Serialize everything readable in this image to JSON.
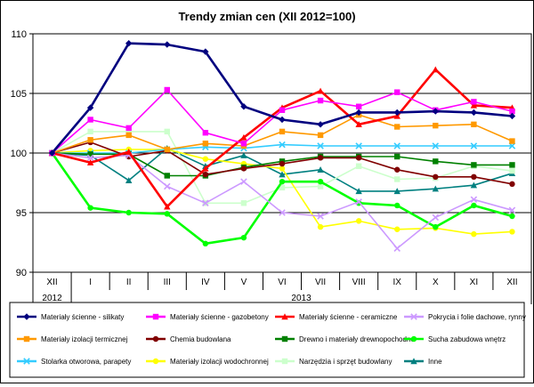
{
  "chart_data": {
    "type": "line",
    "title": "Trendy zmian cen (XII 2012=100)",
    "xlabel": "",
    "ylabel": "",
    "categories": [
      "XII",
      "I",
      "II",
      "III",
      "IV",
      "V",
      "VI",
      "VII",
      "VIII",
      "IX",
      "X",
      "XI",
      "XII"
    ],
    "year_labels": [
      {
        "label": "2012",
        "from": 0,
        "to": 0
      },
      {
        "label": "2013",
        "from": 1,
        "to": 12
      }
    ],
    "ylim": [
      90,
      110
    ],
    "yticks": [
      90,
      95,
      100,
      105,
      110
    ],
    "grid": "horizontal at 95, 100, 105",
    "legend_position": "bottom",
    "series": [
      {
        "name": "Materiały ścienne - silikaty",
        "color": "#00007F",
        "marker": "diamond",
        "values": [
          100,
          103.8,
          109.2,
          109.1,
          108.5,
          103.9,
          102.8,
          102.4,
          103.4,
          103.4,
          103.5,
          103.4,
          103.1
        ]
      },
      {
        "name": "Materiały ścienne - gazobetony",
        "color": "#FF00FF",
        "marker": "square",
        "values": [
          100,
          102.8,
          102.1,
          105.3,
          101.7,
          100.8,
          103.6,
          104.4,
          103.9,
          105.1,
          103.6,
          104.3,
          103.5
        ]
      },
      {
        "name": "Materiały ścienne - ceramiczne",
        "color": "#FF0000",
        "marker": "triangle",
        "values": [
          100,
          99.2,
          100.1,
          95.5,
          98.7,
          101.3,
          103.8,
          105.2,
          102.4,
          103.1,
          107.0,
          104.0,
          103.8
        ]
      },
      {
        "name": "Pokrycia i folie dachowe, rynny",
        "color": "#CC99FF",
        "marker": "x",
        "values": [
          100,
          99.6,
          99.8,
          97.2,
          95.8,
          97.6,
          95.0,
          94.7,
          95.9,
          92.0,
          94.6,
          96.1,
          95.2
        ]
      },
      {
        "name": "Materiały izolacji termicznej",
        "color": "#FF9900",
        "marker": "square",
        "values": [
          100,
          101.1,
          101.5,
          100.3,
          100.8,
          100.6,
          101.8,
          101.5,
          103.2,
          102.2,
          102.3,
          102.4,
          101.0
        ]
      },
      {
        "name": "Chemia budowlana",
        "color": "#800000",
        "marker": "circle",
        "values": [
          100,
          100.9,
          99.7,
          100.2,
          98.2,
          98.7,
          99.1,
          99.6,
          99.6,
          98.6,
          98.0,
          98.0,
          97.4
        ]
      },
      {
        "name": "Drewno i materiały drewnopochodne",
        "color": "#008000",
        "marker": "square",
        "values": [
          100,
          99.9,
          99.9,
          98.1,
          98.1,
          98.8,
          99.3,
          99.7,
          99.7,
          99.7,
          99.3,
          99.0,
          99.0
        ]
      },
      {
        "name": "Sucha zabudowa wnętrz",
        "color": "#00FF00",
        "marker": "circle",
        "values": [
          100,
          95.4,
          95.0,
          94.9,
          92.4,
          92.9,
          97.6,
          97.6,
          95.8,
          95.6,
          93.8,
          95.6,
          94.7
        ]
      },
      {
        "name": "Stolarka otworowa, parapety",
        "color": "#33CCFF",
        "marker": "x",
        "values": [
          100,
          100.0,
          100.0,
          100.3,
          100.5,
          100.4,
          100.7,
          100.6,
          100.6,
          100.6,
          100.6,
          100.6,
          100.6
        ]
      },
      {
        "name": "Materiały izolacji wodochronnej",
        "color": "#FFFF00",
        "marker": "circle",
        "values": [
          100,
          100.2,
          100.3,
          100.3,
          99.5,
          99.1,
          98.7,
          93.8,
          94.3,
          93.6,
          93.7,
          93.2,
          93.4
        ]
      },
      {
        "name": "Narzędzia i sprzęt budowlany",
        "color": "#CCFFCC",
        "marker": "square",
        "values": [
          100,
          101.8,
          101.8,
          101.8,
          95.8,
          95.8,
          97.1,
          97.2,
          98.9,
          97.8,
          97.9,
          98.9,
          98.5
        ]
      },
      {
        "name": "Inne",
        "color": "#008080",
        "marker": "triangle",
        "values": [
          100,
          99.8,
          97.7,
          100.4,
          98.9,
          99.8,
          98.2,
          98.6,
          96.8,
          96.8,
          97.0,
          97.3,
          98.3
        ]
      }
    ]
  }
}
